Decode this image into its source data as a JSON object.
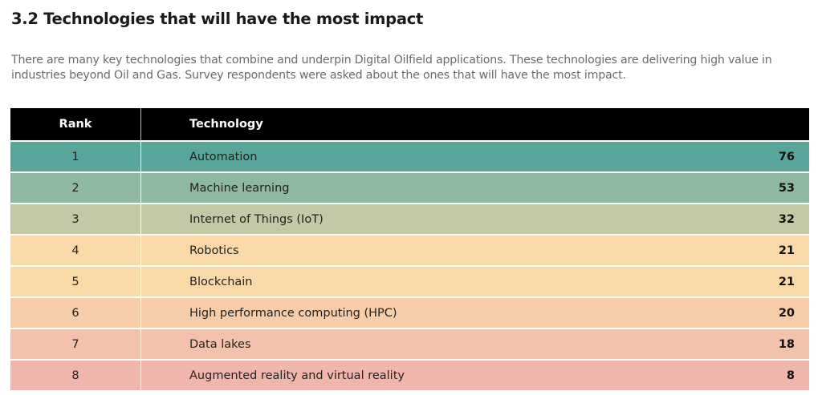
{
  "heading": "3.2 Technologies that will have the most impact",
  "intro": "There are many key technologies that combine and underpin Digital Oilfield applications.  These technologies are delivering high value in industries beyond Oil and Gas. Survey respondents were asked about the ones that will have the most impact.",
  "table": {
    "headers": {
      "rank": "Rank",
      "technology": "Technology"
    },
    "rows": [
      {
        "rank": "1",
        "technology": "Automation",
        "value": "76",
        "color": "#58a59b"
      },
      {
        "rank": "2",
        "technology": "Machine learning",
        "value": "53",
        "color": "#8fb8a0"
      },
      {
        "rank": "3",
        "technology": "Internet of Things (IoT)",
        "value": "32",
        "color": "#c4c8a6"
      },
      {
        "rank": "4",
        "technology": "Robotics",
        "value": "21",
        "color": "#f9d9a7"
      },
      {
        "rank": "5",
        "technology": "Blockchain",
        "value": "21",
        "color": "#f9d9a7"
      },
      {
        "rank": "6",
        "technology": "High performance computing (HPC)",
        "value": "20",
        "color": "#f6cca9"
      },
      {
        "rank": "7",
        "technology": "Data lakes",
        "value": "18",
        "color": "#f3c2ad"
      },
      {
        "rank": "8",
        "technology": "Augmented reality and virtual reality",
        "value": "8",
        "color": "#f0b6ae"
      }
    ]
  }
}
